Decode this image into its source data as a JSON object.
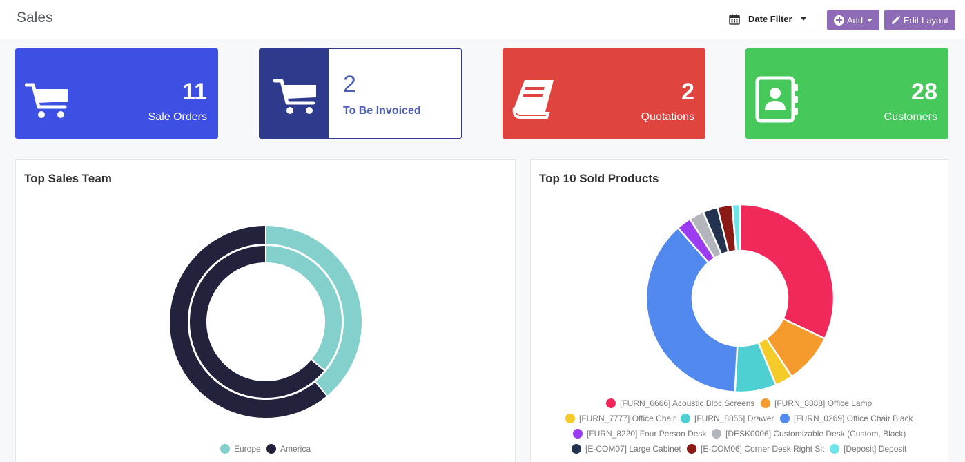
{
  "header": {
    "title": "Sales",
    "date_filter_label": "Date Filter",
    "add_label": "Add",
    "edit_layout_label": "Edit Layout"
  },
  "cards": [
    {
      "value": "11",
      "label": "Sale Orders",
      "icon": "cart-icon",
      "color": "#3e50e4"
    },
    {
      "value": "2",
      "label": "To Be Invoiced",
      "icon": "cart-icon",
      "color": "#2e3a8c"
    },
    {
      "value": "2",
      "label": "Quotations",
      "icon": "book-icon",
      "color": "#e0443f"
    },
    {
      "value": "28",
      "label": "Customers",
      "icon": "contacts-icon",
      "color": "#46c85b"
    }
  ],
  "panels": {
    "sales_team_title": "Top Sales Team",
    "products_title": "Top 10 Sold Products"
  },
  "chart_data": [
    {
      "type": "pie",
      "title": "Top Sales Team",
      "variant": "double-ring",
      "categories": [
        "Europe",
        "America"
      ],
      "colors": [
        "#84d0cc",
        "#22223d"
      ],
      "series": [
        {
          "values": [
            39,
            61
          ]
        },
        {
          "values": [
            36,
            64
          ]
        }
      ],
      "legend": "bottom"
    },
    {
      "type": "pie",
      "title": "Top 10 Sold Products",
      "variant": "donut",
      "categories": [
        "[FURN_6666] Acoustic Bloc Screens",
        "[FURN_8888] Office Lamp",
        "[FURN_7777] Office Chair",
        "[FURN_8855] Drawer",
        "[FURN_0269] Office Chair Black",
        "[FURN_8220] Four Person Desk",
        "[DESK0006] Customizable Desk (Custom, Black)",
        "[E-COM07] Large Cabinet",
        "[E-COM06] Corner Desk Right Sit",
        "[Deposit] Deposit"
      ],
      "values": [
        31.5,
        8.5,
        3,
        7,
        37,
        2.5,
        2.5,
        2.5,
        2.5,
        1.3
      ],
      "colors": [
        "#f0295a",
        "#f59a2c",
        "#f5cb2a",
        "#4ecfd1",
        "#5189ee",
        "#9b3cf0",
        "#b3b5bd",
        "#23324f",
        "#8a1a16",
        "#6ee3e8"
      ],
      "legend": "bottom"
    }
  ]
}
